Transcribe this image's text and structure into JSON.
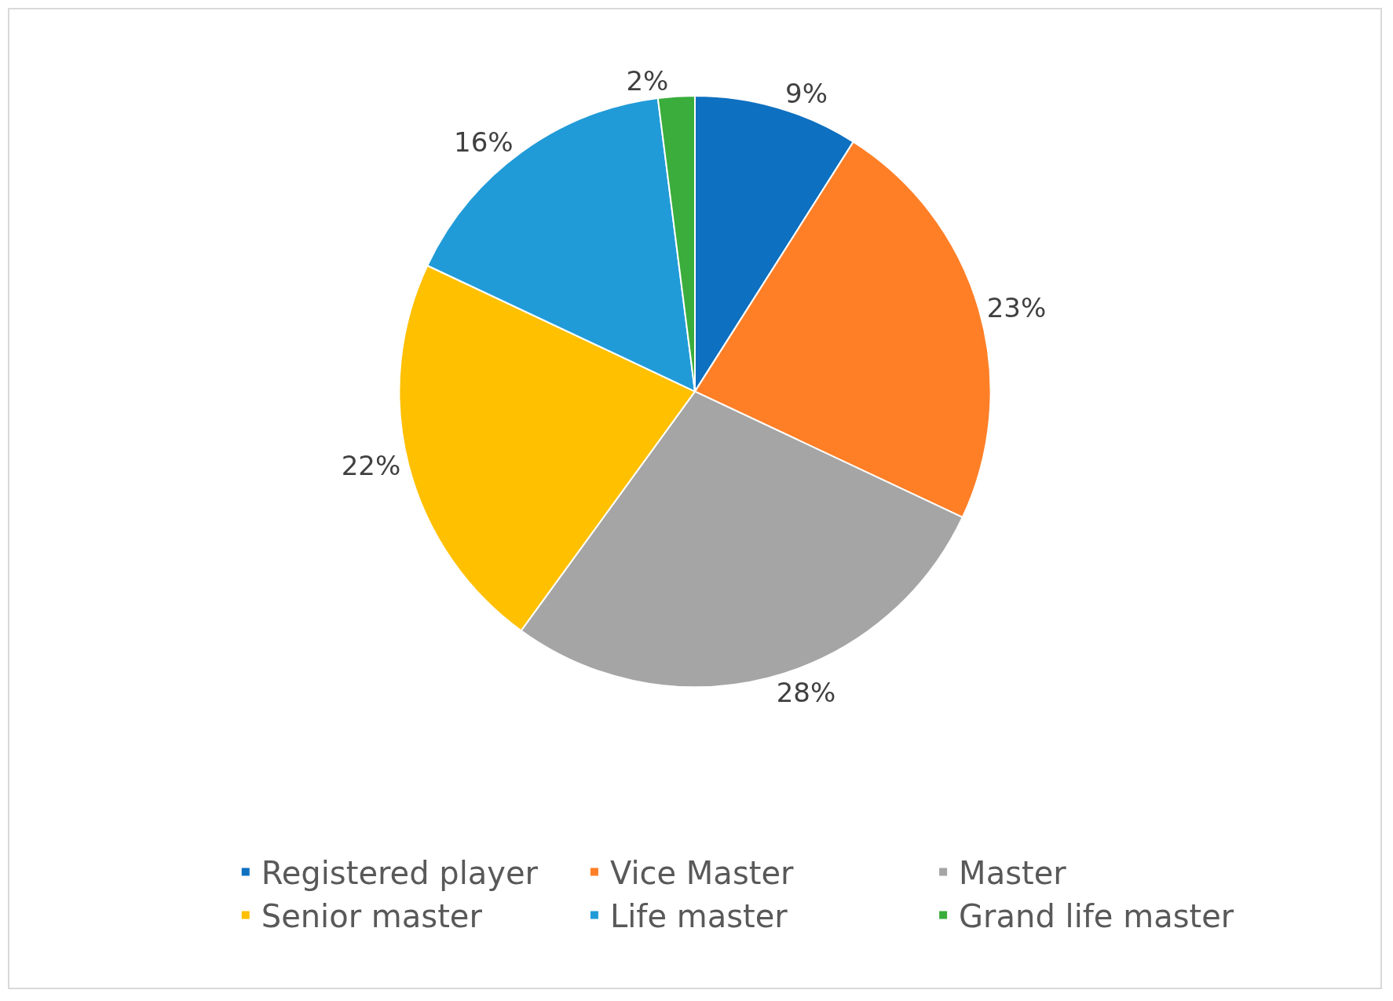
{
  "chart_data": {
    "type": "pie",
    "categories": [
      "Registered player",
      "Vice Master",
      "Master",
      "Senior master",
      "Life master",
      "Grand life master"
    ],
    "values": [
      9,
      23,
      28,
      22,
      16,
      2
    ],
    "value_labels": [
      "9%",
      "23%",
      "28%",
      "22%",
      "16%",
      "2%"
    ],
    "colors": [
      "#0e70c0",
      "#ff7f27",
      "#a5a5a5",
      "#ffc000",
      "#219bd8",
      "#3aad3c"
    ],
    "legend": "bottom"
  }
}
